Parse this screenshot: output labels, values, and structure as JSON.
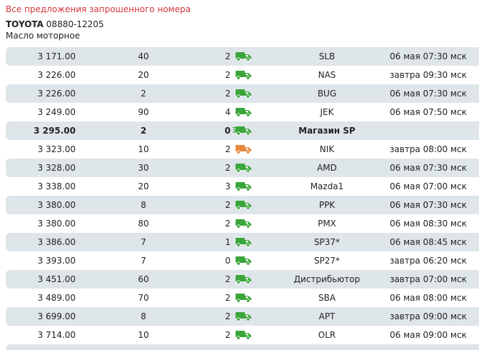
{
  "header": {
    "title": "Все предложения запрошенного номера"
  },
  "part": {
    "brand": "TOYOTA",
    "number": "08880-12205",
    "description": "Масло моторное"
  },
  "colors": {
    "title_red": "#d2363a",
    "truck_green": "#3aa53a",
    "truck_orange": "#e8873a",
    "row_shade": "#dfe6ea"
  },
  "offers": [
    {
      "price": "3 171.00",
      "qty": "40",
      "days": "2",
      "truck": "green",
      "supplier": "SLB",
      "delivery": "06 мая 07:30 мск"
    },
    {
      "price": "3 226.00",
      "qty": "20",
      "days": "2",
      "truck": "green",
      "supplier": "NAS",
      "delivery": "завтра 09:30 мск"
    },
    {
      "price": "3 226.00",
      "qty": "2",
      "days": "2",
      "truck": "green",
      "supplier": "BUG",
      "delivery": "06 мая 07:30 мск"
    },
    {
      "price": "3 249.00",
      "qty": "90",
      "days": "4",
      "truck": "green",
      "supplier": "JEK",
      "delivery": "06 мая 07:50 мск"
    },
    {
      "price": "3 295.00",
      "qty": "2",
      "days": "0",
      "truck": "green-fast",
      "supplier": "Магазин SP",
      "delivery": "",
      "own": true
    },
    {
      "price": "3 323.00",
      "qty": "10",
      "days": "2",
      "truck": "orange",
      "supplier": "NIK",
      "delivery": "завтра 08:00 мск"
    },
    {
      "price": "3 328.00",
      "qty": "30",
      "days": "2",
      "truck": "green",
      "supplier": "AMD",
      "delivery": "06 мая 07:30 мск"
    },
    {
      "price": "3 338.00",
      "qty": "20",
      "days": "3",
      "truck": "green",
      "supplier": "Mazda1",
      "delivery": "06 мая 07:00 мск"
    },
    {
      "price": "3 380.00",
      "qty": "8",
      "days": "2",
      "truck": "green",
      "supplier": "PPK",
      "delivery": "06 мая 07:30 мск"
    },
    {
      "price": "3 380.00",
      "qty": "80",
      "days": "2",
      "truck": "green",
      "supplier": "PMX",
      "delivery": "06 мая 08:30 мск"
    },
    {
      "price": "3 386.00",
      "qty": "7",
      "days": "1",
      "truck": "green",
      "supplier": "SP37*",
      "delivery": "06 мая 08:45 мск"
    },
    {
      "price": "3 393.00",
      "qty": "7",
      "days": "0",
      "truck": "green",
      "supplier": "SP27*",
      "delivery": "завтра 06:20 мск"
    },
    {
      "price": "3 451.00",
      "qty": "60",
      "days": "2",
      "truck": "green",
      "supplier": "Дистрибьютор",
      "delivery": "завтра 07:00 мск"
    },
    {
      "price": "3 489.00",
      "qty": "70",
      "days": "2",
      "truck": "green",
      "supplier": "SBA",
      "delivery": "06 мая 08:00 мск"
    },
    {
      "price": "3 699.00",
      "qty": "8",
      "days": "2",
      "truck": "green",
      "supplier": "APT",
      "delivery": "завтра 09:00 мск"
    },
    {
      "price": "3 714.00",
      "qty": "10",
      "days": "2",
      "truck": "green",
      "supplier": "OLR",
      "delivery": "06 мая 09:00 мск"
    }
  ]
}
